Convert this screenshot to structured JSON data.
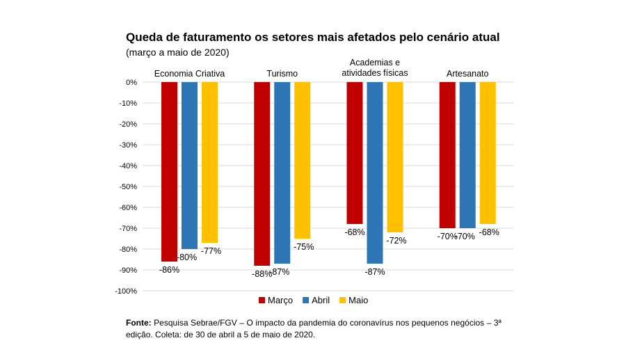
{
  "chart_data": {
    "type": "bar",
    "title": "Queda de faturamento os setores mais afetados pelo cenário atual",
    "subtitle": "(março a maio de 2020)",
    "categories": [
      "Economia Criativa",
      "Turismo",
      "Academias e atividades físicas",
      "Artesanato"
    ],
    "category_label_lines": [
      [
        "Economia Criativa"
      ],
      [
        "Turismo"
      ],
      [
        "Academias e",
        "atividades físicas"
      ],
      [
        "Artesanato"
      ]
    ],
    "series": [
      {
        "name": "Março",
        "color": "#C00000",
        "values": [
          -86,
          -88,
          -68,
          -70
        ]
      },
      {
        "name": "Abril",
        "color": "#2E75B6",
        "values": [
          -80,
          -87,
          -87,
          -70
        ]
      },
      {
        "name": "Maio",
        "color": "#FFC000",
        "values": [
          -77,
          -75,
          -72,
          -68
        ]
      }
    ],
    "data_labels": [
      [
        "-86%",
        "-80%",
        "-77%"
      ],
      [
        "-88%",
        "-87%",
        "-75%"
      ],
      [
        "-68%",
        "-87%",
        "-72%"
      ],
      [
        "-70%",
        "-70%",
        "-68%"
      ]
    ],
    "y_ticks": [
      "0%",
      "-10%",
      "-20%",
      "-30%",
      "-40%",
      "-50%",
      "-60%",
      "-70%",
      "-80%",
      "-90%",
      "-100%"
    ],
    "ylim": [
      -100,
      0
    ],
    "grid": true,
    "legend_position": "bottom"
  },
  "source": {
    "label": "Fonte:",
    "text": " Pesquisa Sebrae/FGV – O impacto da pandemia do coronavírus nos pequenos negócios – 3ª edição. Coleta: de 30 de abril a 5 de maio de 2020."
  }
}
